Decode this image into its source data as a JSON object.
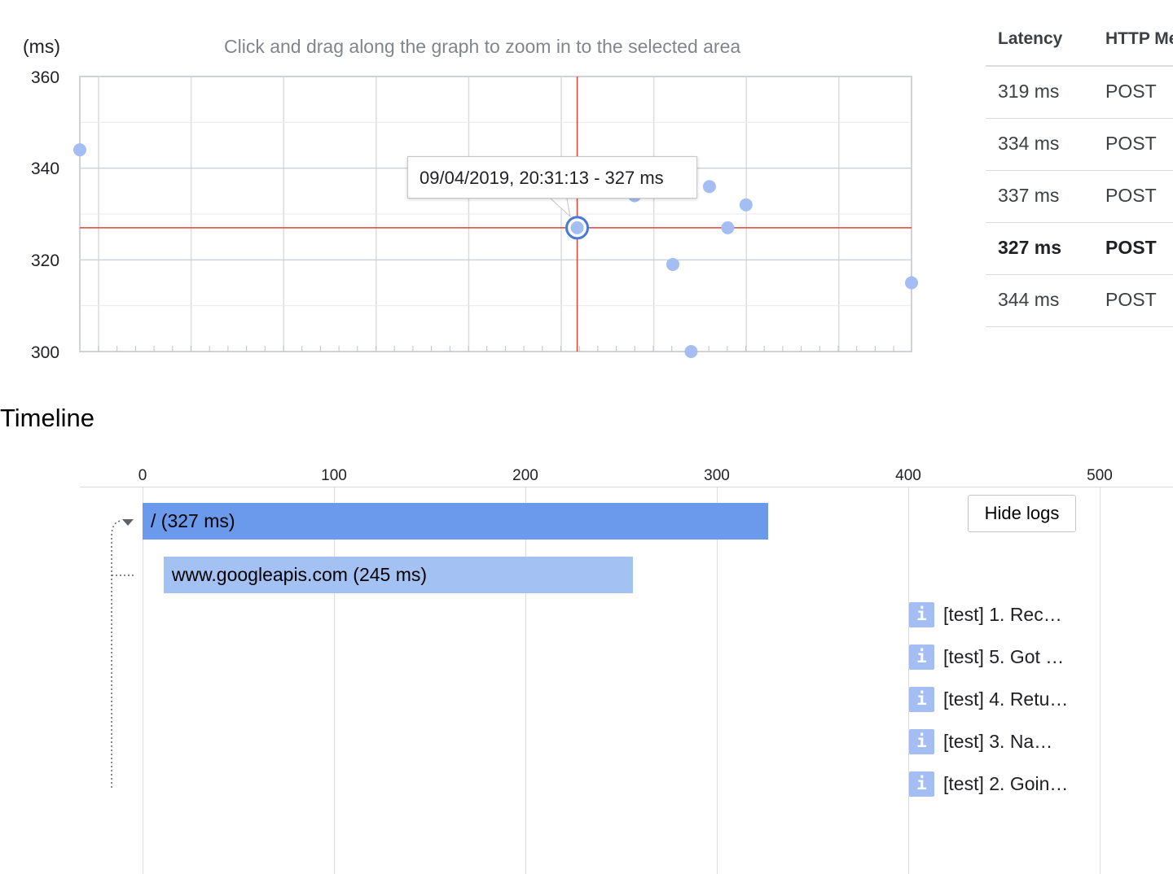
{
  "scatter": {
    "y_unit_label": "(ms)",
    "hint": "Click and drag along the graph to zoom in to the selected area",
    "tooltip": "09/04/2019, 20:31:13 - 327 ms",
    "colors": {
      "point": "#a4bdf2",
      "crosshair": "#db4437",
      "grid": "#dadce0",
      "selected_ring": "#4a78d9"
    }
  },
  "chart_data": {
    "type": "scatter",
    "xlabel": "",
    "ylabel": "(ms)",
    "ylim": [
      300,
      360
    ],
    "yticks": [
      "360",
      "340",
      "320",
      "300"
    ],
    "grid": true,
    "x_domain": [
      0,
      1
    ],
    "points": [
      {
        "x": 0.0,
        "y": 344
      },
      {
        "x": 0.667,
        "y": 334
      },
      {
        "x": 0.757,
        "y": 336
      },
      {
        "x": 0.801,
        "y": 332
      },
      {
        "x": 0.779,
        "y": 327
      },
      {
        "x": 0.713,
        "y": 319
      },
      {
        "x": 0.735,
        "y": 300
      },
      {
        "x": 1.0,
        "y": 315
      },
      {
        "x": 0.598,
        "y": 327,
        "selected": true
      }
    ],
    "crosshair": {
      "x": 0.598,
      "y": 327
    }
  },
  "latency_table": {
    "headers": [
      "Latency",
      "HTTP Method"
    ],
    "rows": [
      {
        "latency": "319 ms",
        "method": "POST",
        "selected": false
      },
      {
        "latency": "334 ms",
        "method": "POST",
        "selected": false
      },
      {
        "latency": "337 ms",
        "method": "POST",
        "selected": false
      },
      {
        "latency": "327 ms",
        "method": "POST",
        "selected": true
      },
      {
        "latency": "344 ms",
        "method": "POST",
        "selected": false
      }
    ]
  },
  "timeline": {
    "title": "Timeline",
    "ticks": [
      "0",
      "100",
      "200",
      "300",
      "400",
      "500"
    ],
    "axis_max": 500,
    "spans": [
      {
        "label": "/ (327 ms)",
        "start_ms": 0,
        "end_ms": 327,
        "color": "#6b99ec",
        "expandable": true
      },
      {
        "label": "www.googleapis.com (245 ms)",
        "start_ms": 11,
        "end_ms": 256,
        "color": "#a4c1f4",
        "expandable": false
      }
    ],
    "hide_logs_label": "Hide logs",
    "log_icon_glyph": "i",
    "logs": [
      "[test] 1. Rec…",
      "[test] 5. Got …",
      "[test] 4. Retu…",
      "[test] 3. Na…",
      "[test] 2. Goin…"
    ]
  }
}
